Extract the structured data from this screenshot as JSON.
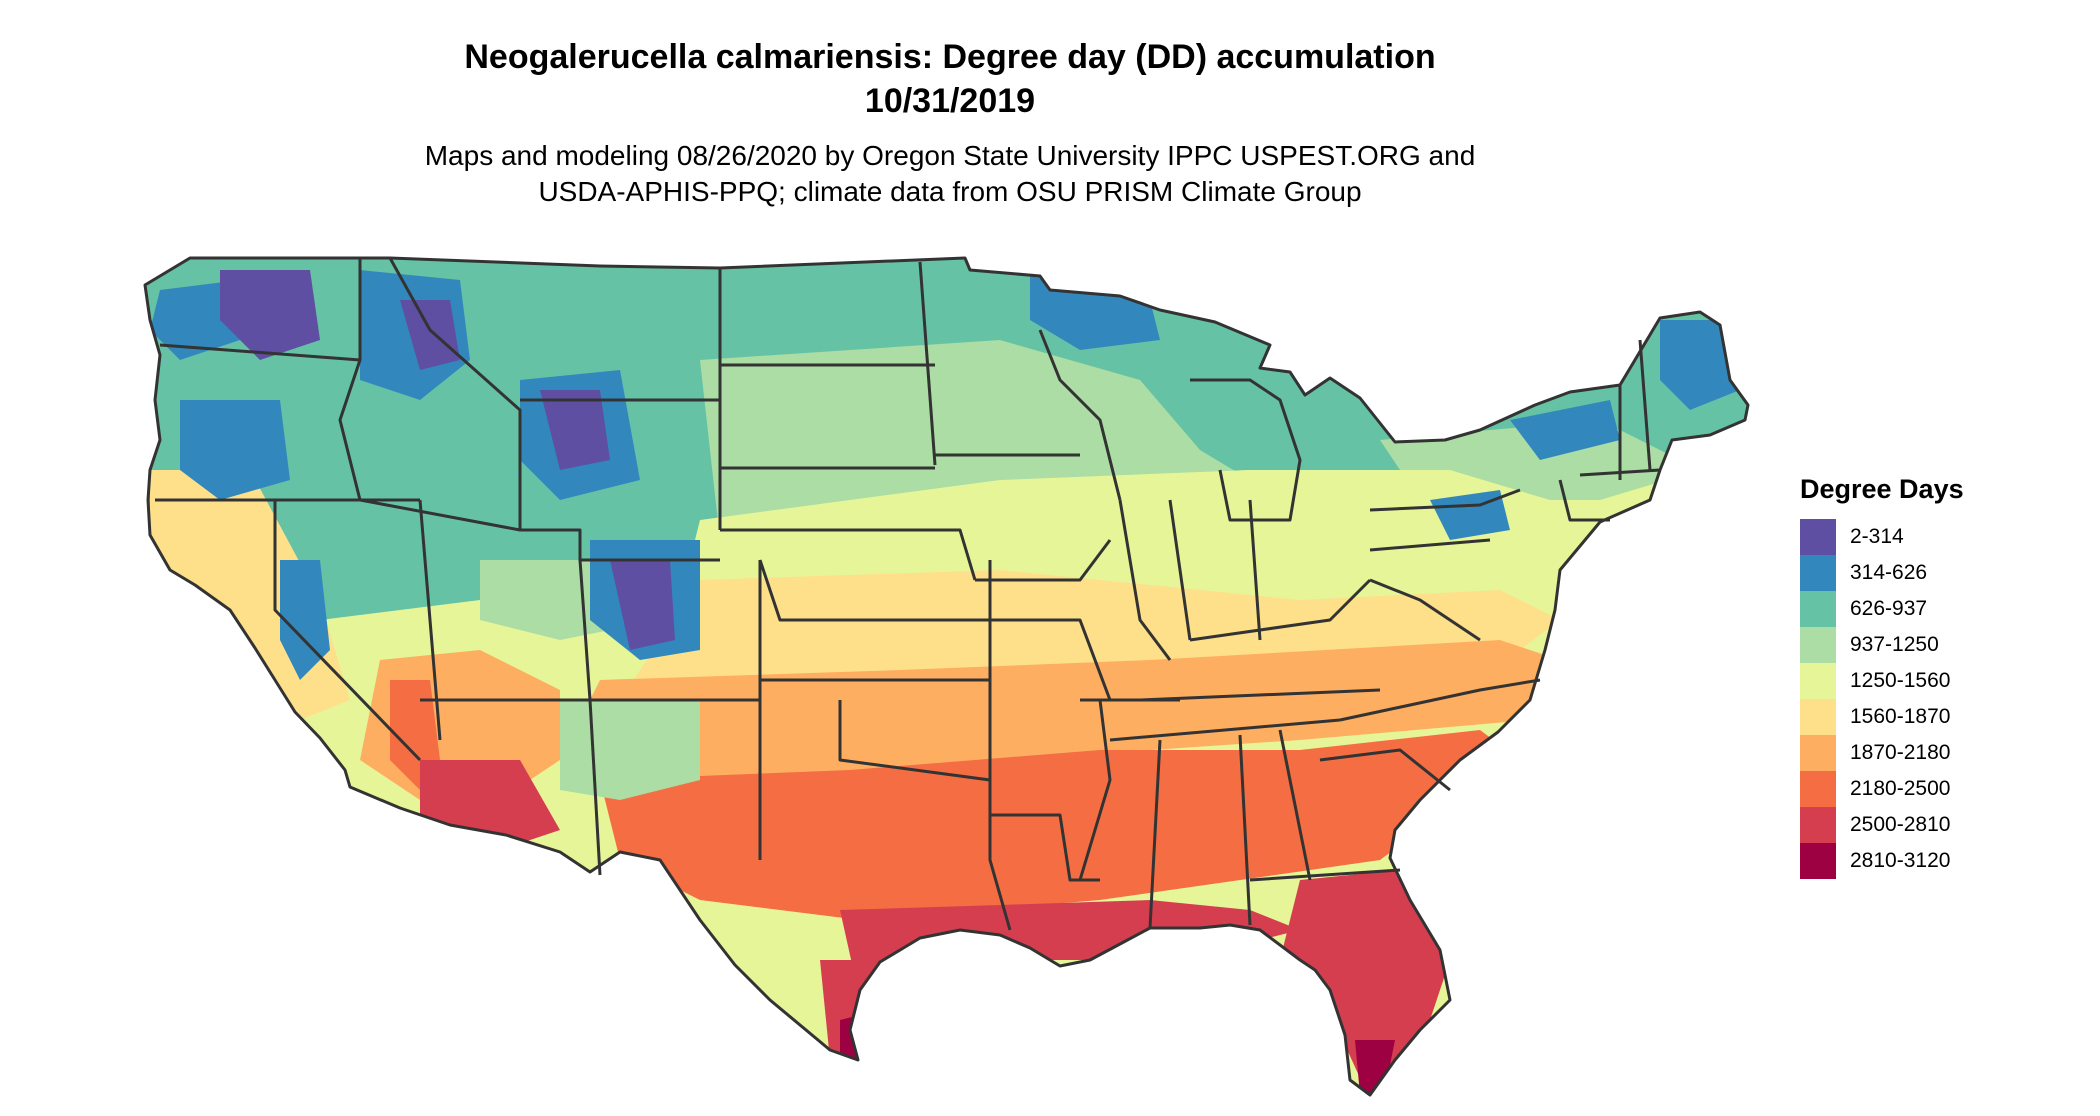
{
  "title_line1": "Neogalerucella calmariensis: Degree day (DD) accumulation",
  "title_line2": "10/31/2019",
  "subtitle_line1": "Maps and modeling 08/26/2020 by Oregon State University IPPC USPEST.ORG and",
  "subtitle_line2": "USDA-APHIS-PPQ; climate data from OSU PRISM Climate Group",
  "legend": {
    "title": "Degree Days",
    "items": [
      {
        "label": "2-314",
        "color": "#5e4fa2"
      },
      {
        "label": "314-626",
        "color": "#3288bd"
      },
      {
        "label": "626-937",
        "color": "#66c2a5"
      },
      {
        "label": "937-1250",
        "color": "#abdda4"
      },
      {
        "label": "1250-1560",
        "color": "#e6f598"
      },
      {
        "label": "1560-1870",
        "color": "#fee08b"
      },
      {
        "label": "1870-2180",
        "color": "#fdae61"
      },
      {
        "label": "2180-2500",
        "color": "#f46d43"
      },
      {
        "label": "2500-2810",
        "color": "#d53e4f"
      },
      {
        "label": "2810-3120",
        "color": "#9e0142"
      }
    ]
  }
}
